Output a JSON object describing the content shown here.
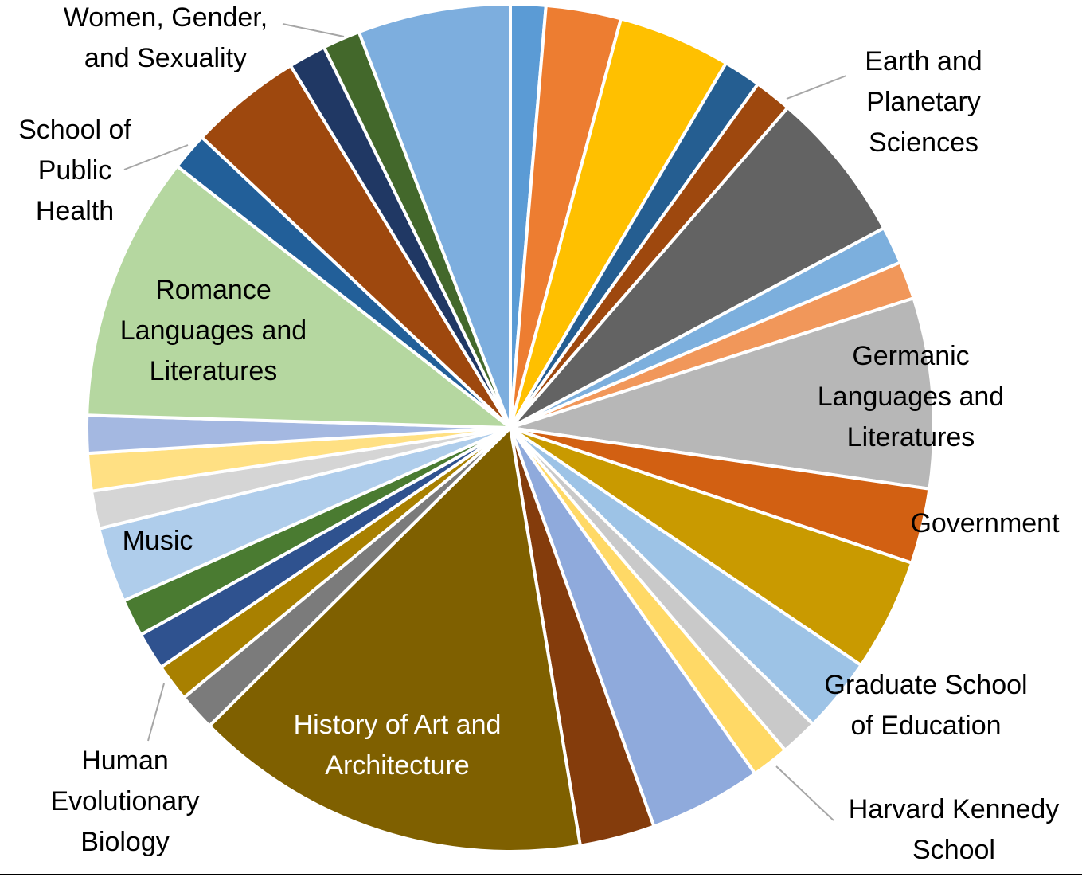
{
  "chart_data": {
    "type": "pie",
    "title": "",
    "slices": [
      {
        "value": 1.5,
        "color": "#5b9bd5",
        "label": ""
      },
      {
        "value": 3.2,
        "color": "#ed7d31",
        "label": ""
      },
      {
        "value": 4.8,
        "color": "#ffc000",
        "label": ""
      },
      {
        "value": 1.6,
        "color": "#255e91",
        "label": ""
      },
      {
        "value": 1.6,
        "color": "#9e480e",
        "label": "Earth and Planetary Sciences"
      },
      {
        "value": 6.5,
        "color": "#636363",
        "label": ""
      },
      {
        "value": 1.6,
        "color": "#7cafdd",
        "label": ""
      },
      {
        "value": 1.6,
        "color": "#f1975a",
        "label": ""
      },
      {
        "value": 8.1,
        "color": "#b7b7b7",
        "label": "Germanic Languages and Literatures"
      },
      {
        "value": 3.2,
        "color": "#d26012",
        "label": "Government"
      },
      {
        "value": 4.8,
        "color": "#c99a00",
        "label": ""
      },
      {
        "value": 3.2,
        "color": "#9dc3e6",
        "label": "Graduate School of Education"
      },
      {
        "value": 1.6,
        "color": "#c9c9c9",
        "label": ""
      },
      {
        "value": 1.6,
        "color": "#ffd966",
        "label": "Harvard Kennedy School"
      },
      {
        "value": 4.8,
        "color": "#8faadc",
        "label": ""
      },
      {
        "value": 3.2,
        "color": "#843c0c",
        "label": ""
      },
      {
        "value": 17.0,
        "color": "#7f6000",
        "label": "History of Art and Architecture"
      },
      {
        "value": 1.6,
        "color": "#7b7b7b",
        "label": ""
      },
      {
        "value": 1.6,
        "color": "#a88000",
        "label": "Human Evolutionary Biology"
      },
      {
        "value": 1.6,
        "color": "#2f528f",
        "label": ""
      },
      {
        "value": 1.6,
        "color": "#4a7b31",
        "label": ""
      },
      {
        "value": 3.2,
        "color": "#afcdeb",
        "label": "Music"
      },
      {
        "value": 1.6,
        "color": "#d5d5d5",
        "label": ""
      },
      {
        "value": 1.6,
        "color": "#ffe083",
        "label": ""
      },
      {
        "value": 1.6,
        "color": "#a4b8e1",
        "label": ""
      },
      {
        "value": 11.3,
        "color": "#b5d7a0",
        "label": "Romance Languages and Literatures"
      },
      {
        "value": 1.6,
        "color": "#225f99",
        "label": "School of Public Health"
      },
      {
        "value": 4.8,
        "color": "#9e480e",
        "label": ""
      },
      {
        "value": 1.6,
        "color": "#203864",
        "label": ""
      },
      {
        "value": 1.6,
        "color": "#43682b",
        "label": "Women, Gender, and Sexuality"
      },
      {
        "value": 6.5,
        "color": "#7daede",
        "label": ""
      }
    ],
    "labels": {
      "earth": "Earth and Planetary Sciences",
      "germanic": "Germanic Languages and Literatures",
      "government": "Government",
      "education": "Graduate School of Education",
      "kennedy": "Harvard Kennedy School",
      "art": "History of Art and Architecture",
      "heb": "Human Evolutionary Biology",
      "music": "Music",
      "romance": "Romance Languages and Literatures",
      "public_health": "School of Public Health",
      "wgs": "Women, Gender, and Sexuality"
    },
    "label_lines": {
      "earth": [
        "Earth and",
        "Planetary",
        "Sciences"
      ],
      "germanic": [
        "Germanic",
        "Languages and",
        "Literatures"
      ],
      "government": [
        "Government"
      ],
      "education": [
        "Graduate School",
        "of Education"
      ],
      "kennedy": [
        "Harvard Kennedy",
        "School"
      ],
      "art": [
        "History of Art and",
        "Architecture"
      ],
      "heb": [
        "Human",
        "Evolutionary",
        "Biology"
      ],
      "music": [
        "Music"
      ],
      "romance": [
        "Romance",
        "Languages and",
        "Literatures"
      ],
      "public_health": [
        "School of",
        "Public",
        "Health"
      ],
      "wgs": [
        "Women, Gender,",
        "and Sexuality"
      ]
    }
  }
}
